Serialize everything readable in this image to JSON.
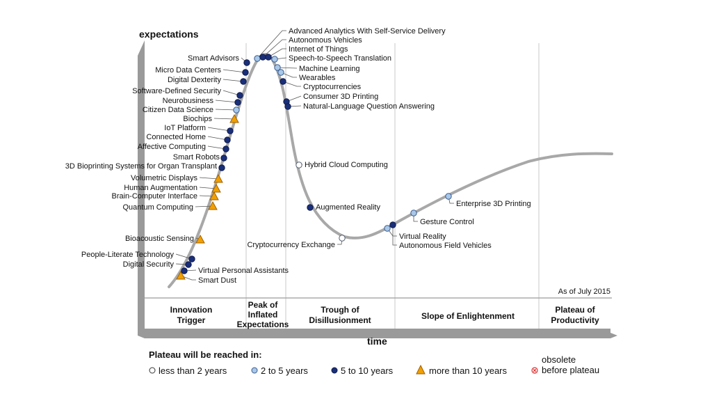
{
  "title": "",
  "axes": {
    "y_label": "expectations",
    "x_label": "time"
  },
  "as_of": "As of July 2015",
  "phases": [
    {
      "name": "Innovation Trigger"
    },
    {
      "name": "Peak of Inflated Expectations"
    },
    {
      "name": "Trough of Disillusionment"
    },
    {
      "name": "Slope of Enlightenment"
    },
    {
      "name": "Plateau of Productivity"
    }
  ],
  "legend": {
    "title": "Plateau will be reached in:",
    "items": [
      {
        "key": "lt2",
        "label": "less than 2 years",
        "shape": "circle",
        "color": "#ffffff"
      },
      {
        "key": "2to5",
        "label": "2 to 5 years",
        "shape": "circle",
        "color": "#a9c8e8"
      },
      {
        "key": "5to10",
        "label": "5 to 10 years",
        "shape": "circle",
        "color": "#1a2f7a"
      },
      {
        "key": "gt10",
        "label": "more than 10 years",
        "shape": "triangle",
        "color": "#f0a000"
      },
      {
        "key": "obs",
        "label": "obsolete before plateau",
        "label_line1": "obsolete",
        "label_line2": "before plateau",
        "shape": "xcircle",
        "color": "#e03030"
      }
    ]
  },
  "colors": {
    "curve": "#a8a8a8",
    "grid": "#c8c8c8",
    "frame": "#9a9a9a"
  },
  "chart_data": {
    "type": "scatter",
    "technologies": [
      {
        "name": "Smart Dust",
        "cat": "gt10"
      },
      {
        "name": "Virtual Personal Assistants",
        "cat": "5to10"
      },
      {
        "name": "Digital Security",
        "cat": "5to10"
      },
      {
        "name": "People-Literate Technology",
        "cat": "5to10"
      },
      {
        "name": "Bioacoustic Sensing",
        "cat": "gt10"
      },
      {
        "name": "Quantum Computing",
        "cat": "gt10"
      },
      {
        "name": "Brain-Computer Interface",
        "cat": "gt10"
      },
      {
        "name": "Human Augmentation",
        "cat": "gt10"
      },
      {
        "name": "Volumetric Displays",
        "cat": "gt10"
      },
      {
        "name": "3D Bioprinting Systems for Organ Transplant",
        "cat": "5to10"
      },
      {
        "name": "Smart Robots",
        "cat": "5to10"
      },
      {
        "name": "Affective  Computing",
        "cat": "5to10"
      },
      {
        "name": "Connected Home",
        "cat": "5to10"
      },
      {
        "name": "IoT Platform",
        "cat": "5to10"
      },
      {
        "name": "Biochips",
        "cat": "gt10"
      },
      {
        "name": "Citizen Data Science",
        "cat": "2to5"
      },
      {
        "name": "Neurobusiness",
        "cat": "5to10"
      },
      {
        "name": "Software-Defined Security",
        "cat": "5to10"
      },
      {
        "name": "Digital Dexterity",
        "cat": "5to10"
      },
      {
        "name": "Micro Data Centers",
        "cat": "5to10"
      },
      {
        "name": "Smart Advisors",
        "cat": "5to10"
      },
      {
        "name": "Advanced Analytics With Self-Service Delivery",
        "cat": "2to5"
      },
      {
        "name": "Autonomous Vehicles",
        "cat": "5to10"
      },
      {
        "name": "Internet of Things",
        "cat": "5to10"
      },
      {
        "name": "Speech-to-Speech Translation",
        "cat": "2to5"
      },
      {
        "name": "Machine Learning",
        "cat": "2to5"
      },
      {
        "name": "Wearables",
        "cat": "2to5"
      },
      {
        "name": "Cryptocurrencies",
        "cat": "5to10"
      },
      {
        "name": "Consumer 3D Printing",
        "cat": "5to10"
      },
      {
        "name": "Natural-Language Question Answering",
        "cat": "5to10"
      },
      {
        "name": "Hybrid Cloud Computing",
        "cat": "lt2"
      },
      {
        "name": "Augmented Reality",
        "cat": "5to10"
      },
      {
        "name": "Cryptocurrency Exchange",
        "cat": "lt2"
      },
      {
        "name": "Virtual Reality",
        "cat": "2to5"
      },
      {
        "name": "Autonomous Field Vehicles",
        "cat": "5to10"
      },
      {
        "name": "Gesture Control",
        "cat": "2to5"
      },
      {
        "name": "Enterprise 3D Printing",
        "cat": "2to5"
      }
    ]
  }
}
